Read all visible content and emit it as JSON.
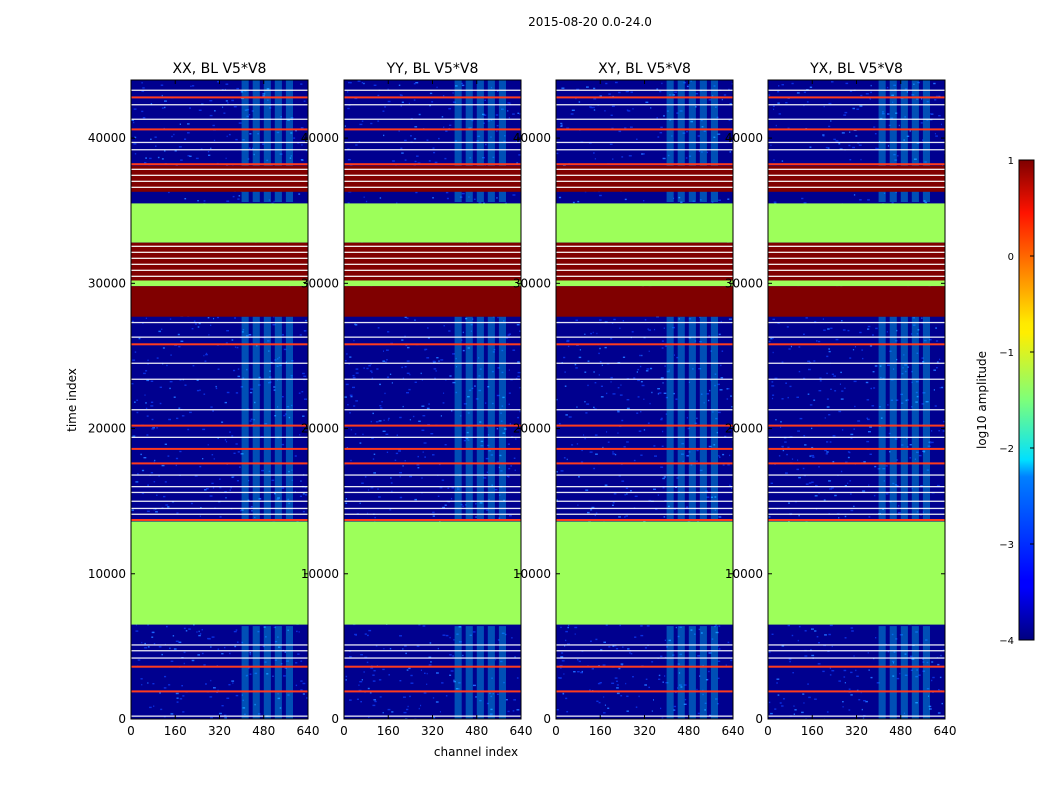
{
  "suptitle": "2015-08-20 0.0-24.0",
  "chart_data": [
    {
      "type": "heatmap",
      "title": "XX, BL V5*V8",
      "xlabel": "",
      "ylabel": "time index",
      "xlim": [
        0,
        640
      ],
      "ylim": [
        0,
        44000
      ],
      "xticks": [
        0,
        160,
        320,
        480,
        640
      ],
      "yticks": [
        0,
        10000,
        20000,
        30000,
        40000
      ],
      "xtick_labels": [
        "0",
        "160",
        "320",
        "480",
        "640"
      ],
      "ytick_labels": [
        "0",
        "10000",
        "20000",
        "30000",
        "40000"
      ]
    },
    {
      "type": "heatmap",
      "title": "YY, BL V5*V8",
      "xlabel": "channel index",
      "ylabel": "",
      "xlim": [
        0,
        640
      ],
      "ylim": [
        0,
        44000
      ],
      "xticks": [
        0,
        160,
        320,
        480,
        640
      ],
      "yticks": [
        0,
        10000,
        20000,
        30000,
        40000
      ],
      "xtick_labels": [
        "0",
        "160",
        "320",
        "480",
        "640"
      ],
      "ytick_labels": [
        "0",
        "10000",
        "20000",
        "30000",
        "40000"
      ]
    },
    {
      "type": "heatmap",
      "title": "XY, BL V5*V8",
      "xlabel": "",
      "ylabel": "",
      "xlim": [
        0,
        640
      ],
      "ylim": [
        0,
        44000
      ],
      "xticks": [
        0,
        160,
        320,
        480,
        640
      ],
      "yticks": [
        0,
        10000,
        20000,
        30000,
        40000
      ],
      "xtick_labels": [
        "0",
        "160",
        "320",
        "480",
        "640"
      ],
      "ytick_labels": [
        "0",
        "10000",
        "20000",
        "30000",
        "40000"
      ]
    },
    {
      "type": "heatmap",
      "title": "YX, BL V5*V8",
      "xlabel": "",
      "ylabel": "",
      "xlim": [
        0,
        640
      ],
      "ylim": [
        0,
        44000
      ],
      "xticks": [
        0,
        160,
        320,
        480,
        640
      ],
      "yticks": [
        0,
        10000,
        20000,
        30000,
        40000
      ],
      "xtick_labels": [
        "0",
        "160",
        "320",
        "480",
        "640"
      ],
      "ytick_labels": [
        "0",
        "10000",
        "20000",
        "30000",
        "40000"
      ]
    }
  ],
  "colorbar": {
    "label": "log10 amplitude",
    "range": [
      -4,
      1
    ],
    "ticks": [
      1,
      0,
      -1,
      -2,
      -3,
      -4
    ],
    "tick_labels": [
      "1",
      "0",
      "−1",
      "−2",
      "−3",
      "−4"
    ]
  },
  "bands": [
    {
      "from": 6500,
      "to": 13600,
      "level": -1.1
    },
    {
      "from": 29800,
      "to": 30200,
      "level": -1.1
    },
    {
      "from": 32800,
      "to": 35500,
      "level": -1.1
    },
    {
      "from": 27700,
      "to": 29800,
      "level": 0.95
    },
    {
      "from": 30200,
      "to": 32800,
      "level": 0.95,
      "striped": true
    },
    {
      "from": 36300,
      "to": 38100,
      "level": 0.95,
      "striped": true
    }
  ],
  "hot_lines": [
    1900,
    3600,
    13700,
    17600,
    18600,
    20200,
    25800,
    38200,
    40600,
    42800
  ],
  "rfi_channel_range": [
    400,
    600
  ],
  "colors": {
    "background": "#00008f",
    "mid_blue": "#0a2fe0",
    "green_band": "#9dff5a",
    "dark_red": "#800000",
    "bright_red": "#ff3b1e",
    "cyan": "#00e1ff",
    "white": "#ffffff"
  }
}
